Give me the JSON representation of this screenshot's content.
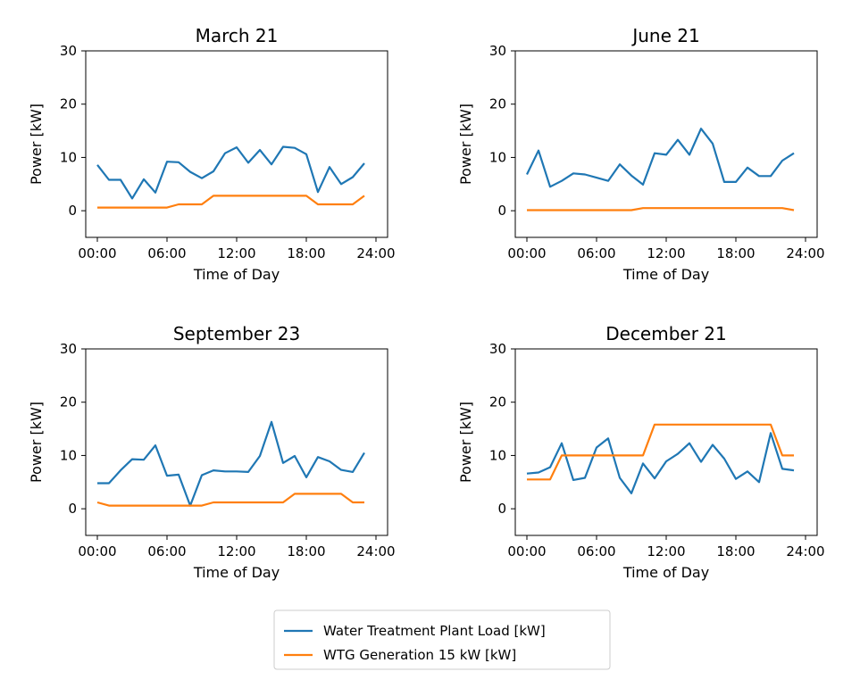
{
  "legend": {
    "entries": [
      {
        "label": "Water Treatment Plant Load [kW]",
        "color": "#1f77b4"
      },
      {
        "label": "WTG Generation 15 kW [kW]",
        "color": "#ff7f0e"
      }
    ]
  },
  "chart_data": [
    {
      "type": "line",
      "title": "March 21",
      "xlabel": "Time of Day",
      "ylabel": "Power [kW]",
      "x": [
        0,
        1,
        2,
        3,
        4,
        5,
        6,
        7,
        8,
        9,
        10,
        11,
        12,
        13,
        14,
        15,
        16,
        17,
        18,
        19,
        20,
        21,
        22,
        23,
        24
      ],
      "xlim": [
        -1,
        25
      ],
      "ylim": [
        -5,
        30
      ],
      "xticks": [
        0,
        6,
        12,
        18,
        24
      ],
      "xtick_labels": [
        "00:00",
        "06:00",
        "12:00",
        "18:00",
        "24:00"
      ],
      "yticks": [
        0,
        10,
        20,
        30
      ],
      "ytick_labels": [
        "0",
        "10",
        "20",
        "30"
      ],
      "series": [
        {
          "name": "Water Treatment Plant Load [kW]",
          "color": "#1f77b4",
          "values": [
            8.6,
            5.8,
            5.8,
            2.3,
            5.9,
            3.4,
            9.2,
            9.1,
            7.3,
            6.1,
            7.4,
            10.8,
            11.9,
            9.0,
            11.4,
            8.7,
            12.0,
            11.8,
            10.6,
            3.5,
            8.2,
            5.0,
            6.3,
            8.9,
            null
          ]
        },
        {
          "name": "WTG Generation 15 kW [kW]",
          "color": "#ff7f0e",
          "values": [
            0.6,
            0.6,
            0.6,
            0.6,
            0.6,
            0.6,
            0.6,
            1.2,
            1.2,
            1.2,
            2.8,
            2.8,
            2.8,
            2.8,
            2.8,
            2.8,
            2.8,
            2.8,
            2.8,
            1.2,
            1.2,
            1.2,
            1.2,
            2.8,
            null
          ]
        }
      ]
    },
    {
      "type": "line",
      "title": "June 21",
      "xlabel": "Time of Day",
      "ylabel": "Power [kW]",
      "x": [
        0,
        1,
        2,
        3,
        4,
        5,
        6,
        7,
        8,
        9,
        10,
        11,
        12,
        13,
        14,
        15,
        16,
        17,
        18,
        19,
        20,
        21,
        22,
        23,
        24
      ],
      "xlim": [
        -1,
        25
      ],
      "ylim": [
        -5,
        30
      ],
      "xticks": [
        0,
        6,
        12,
        18,
        24
      ],
      "xtick_labels": [
        "00:00",
        "06:00",
        "12:00",
        "18:00",
        "24:00"
      ],
      "yticks": [
        0,
        10,
        20,
        30
      ],
      "ytick_labels": [
        "0",
        "10",
        "20",
        "30"
      ],
      "series": [
        {
          "name": "Water Treatment Plant Load [kW]",
          "color": "#1f77b4",
          "values": [
            6.8,
            11.3,
            4.5,
            5.6,
            7.0,
            6.8,
            6.2,
            5.6,
            8.7,
            6.6,
            4.9,
            10.8,
            10.5,
            13.3,
            10.5,
            15.4,
            12.6,
            5.4,
            5.4,
            8.1,
            6.5,
            6.5,
            9.4,
            10.8,
            null
          ]
        },
        {
          "name": "WTG Generation 15 kW [kW]",
          "color": "#ff7f0e",
          "values": [
            0.1,
            0.1,
            0.1,
            0.1,
            0.1,
            0.1,
            0.1,
            0.1,
            0.1,
            0.1,
            0.5,
            0.5,
            0.5,
            0.5,
            0.5,
            0.5,
            0.5,
            0.5,
            0.5,
            0.5,
            0.5,
            0.5,
            0.5,
            0.1,
            null
          ]
        }
      ]
    },
    {
      "type": "line",
      "title": "September 23",
      "xlabel": "Time of Day",
      "ylabel": "Power [kW]",
      "x": [
        0,
        1,
        2,
        3,
        4,
        5,
        6,
        7,
        8,
        9,
        10,
        11,
        12,
        13,
        14,
        15,
        16,
        17,
        18,
        19,
        20,
        21,
        22,
        23,
        24
      ],
      "xlim": [
        -1,
        25
      ],
      "ylim": [
        -5,
        30
      ],
      "xticks": [
        0,
        6,
        12,
        18,
        24
      ],
      "xtick_labels": [
        "00:00",
        "06:00",
        "12:00",
        "18:00",
        "24:00"
      ],
      "yticks": [
        0,
        10,
        20,
        30
      ],
      "ytick_labels": [
        "0",
        "10",
        "20",
        "30"
      ],
      "series": [
        {
          "name": "Water Treatment Plant Load [kW]",
          "color": "#1f77b4",
          "values": [
            4.8,
            4.8,
            7.2,
            9.3,
            9.2,
            11.9,
            6.2,
            6.4,
            0.6,
            6.3,
            7.2,
            7.0,
            7.0,
            6.9,
            9.9,
            16.3,
            8.6,
            9.9,
            5.9,
            9.7,
            8.9,
            7.3,
            6.9,
            10.5,
            null
          ]
        },
        {
          "name": "WTG Generation 15 kW [kW]",
          "color": "#ff7f0e",
          "values": [
            1.2,
            0.6,
            0.6,
            0.6,
            0.6,
            0.6,
            0.6,
            0.6,
            0.6,
            0.6,
            1.2,
            1.2,
            1.2,
            1.2,
            1.2,
            1.2,
            1.2,
            2.8,
            2.8,
            2.8,
            2.8,
            2.8,
            1.2,
            1.2,
            null
          ]
        }
      ]
    },
    {
      "type": "line",
      "title": "December 21",
      "xlabel": "Time of Day",
      "ylabel": "Power [kW]",
      "x": [
        0,
        1,
        2,
        3,
        4,
        5,
        6,
        7,
        8,
        9,
        10,
        11,
        12,
        13,
        14,
        15,
        16,
        17,
        18,
        19,
        20,
        21,
        22,
        23,
        24
      ],
      "xlim": [
        -1,
        25
      ],
      "ylim": [
        -5,
        30
      ],
      "xticks": [
        0,
        6,
        12,
        18,
        24
      ],
      "xtick_labels": [
        "00:00",
        "06:00",
        "12:00",
        "18:00",
        "24:00"
      ],
      "yticks": [
        0,
        10,
        20,
        30
      ],
      "ytick_labels": [
        "0",
        "10",
        "20",
        "30"
      ],
      "series": [
        {
          "name": "Water Treatment Plant Load [kW]",
          "color": "#1f77b4",
          "values": [
            6.6,
            6.8,
            7.8,
            12.3,
            5.4,
            5.8,
            11.5,
            13.2,
            5.8,
            2.9,
            8.5,
            5.7,
            8.9,
            10.3,
            12.3,
            8.8,
            12.0,
            9.4,
            5.6,
            7.0,
            5.0,
            14.2,
            7.5,
            7.2,
            null
          ]
        },
        {
          "name": "WTG Generation 15 kW [kW]",
          "color": "#ff7f0e",
          "values": [
            5.5,
            5.5,
            5.5,
            10.0,
            10.0,
            10.0,
            10.0,
            10.0,
            10.0,
            10.0,
            10.0,
            15.8,
            15.8,
            15.8,
            15.8,
            15.8,
            15.8,
            15.8,
            15.8,
            15.8,
            15.8,
            15.8,
            10.0,
            10.0,
            null
          ]
        }
      ]
    }
  ]
}
